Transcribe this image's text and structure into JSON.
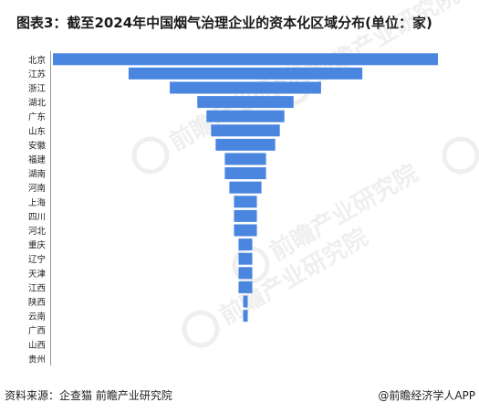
{
  "title": "图表3：截至2024年中国烟气治理企业的资本化区域分布(单位：家)",
  "footer": {
    "source": "资料来源：企查猫 前瞻产业研究院",
    "brand": "@前瞻经济学人APP"
  },
  "watermark": {
    "text": "前瞻产业研究院"
  },
  "colors": {
    "bar": "#4a86e0",
    "text": "#222222"
  },
  "chart_data": {
    "type": "bar",
    "orientation": "horizontal",
    "alignment": "centered",
    "categories": [
      "北京",
      "江苏",
      "浙江",
      "湖北",
      "广东",
      "山东",
      "安徽",
      "福建",
      "湖南",
      "河南",
      "上海",
      "四川",
      "河北",
      "重庆",
      "辽宁",
      "天津",
      "江西",
      "陕西",
      "云南",
      "广西",
      "山西",
      "贵州"
    ],
    "values": [
      84,
      51,
      33,
      21,
      17,
      15,
      13,
      9,
      9,
      7,
      5,
      5,
      5,
      3,
      3,
      3,
      3,
      1,
      1,
      0,
      0,
      0
    ]
  }
}
